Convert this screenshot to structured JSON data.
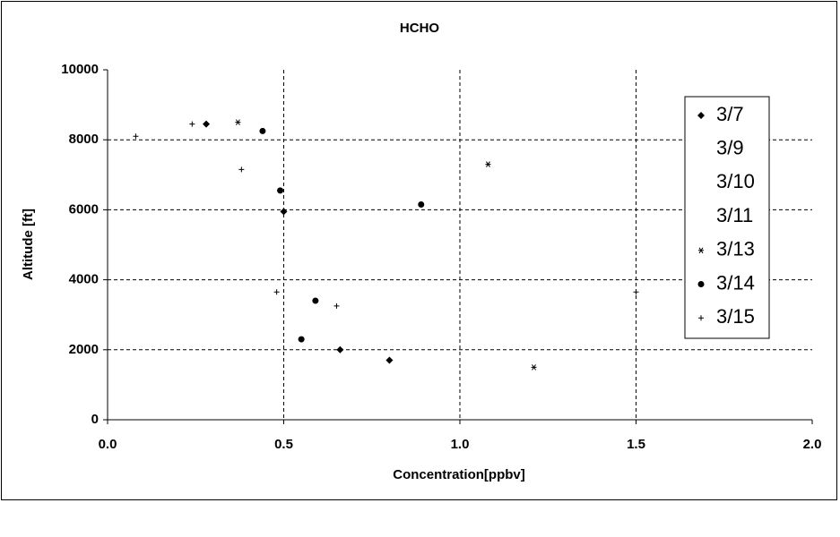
{
  "chart_data": {
    "type": "scatter",
    "title": "HCHO",
    "x_label": "Concentration[ppbv]",
    "y_label": "Altitude [ft]",
    "xlim": [
      0,
      2
    ],
    "xticks": [
      {
        "value": 0,
        "label": "0.0"
      },
      0.5,
      {
        "value": 1,
        "label": "1.0"
      },
      1.5,
      {
        "value": 2,
        "label": "2.0"
      }
    ],
    "ylim": [
      0,
      10000
    ],
    "yticks": [
      0,
      2000,
      4000,
      6000,
      8000,
      10000
    ],
    "grid": true,
    "legend": "right",
    "series": [
      {
        "name": "3/7",
        "color": "#000000",
        "marker": "diamond",
        "x": [
          0.28,
          0.5,
          0.66,
          0.8
        ],
        "values": [
          8450,
          5950,
          2000,
          1700
        ]
      },
      {
        "name": "3/9",
        "color": "#000000",
        "marker": "none",
        "x": [],
        "values": []
      },
      {
        "name": "3/10",
        "color": "#000000",
        "marker": "none",
        "x": [],
        "values": []
      },
      {
        "name": "3/11",
        "color": "#000000",
        "marker": "none",
        "x": [],
        "values": []
      },
      {
        "name": "3/13",
        "color": "#000000",
        "marker": "asterisk",
        "x": [
          0.37,
          1.08,
          1.21
        ],
        "values": [
          8500,
          7300,
          1500
        ]
      },
      {
        "name": "3/14",
        "color": "#000000",
        "marker": "circle",
        "x": [
          0.44,
          0.49,
          0.89,
          0.59,
          0.55
        ],
        "values": [
          8250,
          6550,
          6150,
          3400,
          2300
        ]
      },
      {
        "name": "3/15",
        "color": "#000000",
        "marker": "plus",
        "x": [
          0.08,
          0.24,
          0.38,
          0.48,
          0.65,
          1.5
        ],
        "values": [
          8100,
          8450,
          7150,
          3650,
          3250,
          3650
        ]
      }
    ]
  }
}
